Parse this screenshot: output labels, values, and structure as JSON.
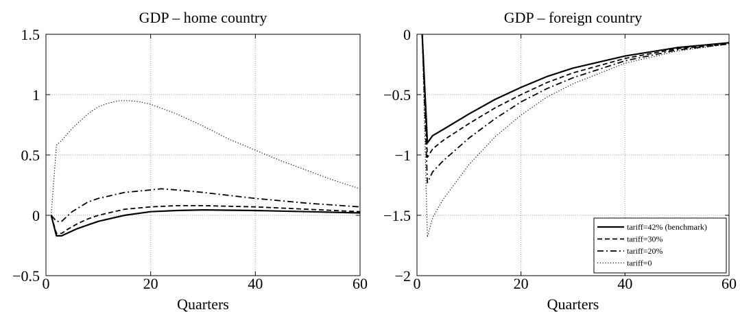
{
  "chart_data": [
    {
      "type": "line",
      "title": "GDP – home country",
      "xlabel": "Quarters",
      "ylabel": "",
      "xlim": [
        0,
        60
      ],
      "ylim": [
        -0.5,
        1.5
      ],
      "xticks": [
        "0",
        "20",
        "40",
        "60"
      ],
      "yticks": [
        "−0.5",
        "0",
        "0.5",
        "1",
        "1.5"
      ],
      "grid": true,
      "series": [
        {
          "name": "tariff=42% (benchmark)",
          "style": "solid",
          "x": [
            1,
            2,
            3,
            4,
            6,
            8,
            10,
            15,
            20,
            25,
            30,
            40,
            50,
            60
          ],
          "y": [
            0,
            -0.17,
            -0.17,
            -0.15,
            -0.11,
            -0.08,
            -0.05,
            0.0,
            0.03,
            0.04,
            0.045,
            0.04,
            0.03,
            0.02
          ]
        },
        {
          "name": "tariff=30%",
          "style": "dashed",
          "x": [
            1,
            2,
            3,
            4,
            6,
            8,
            10,
            15,
            20,
            25,
            30,
            40,
            50,
            60
          ],
          "y": [
            0,
            -0.15,
            -0.15,
            -0.12,
            -0.07,
            -0.03,
            0.0,
            0.05,
            0.07,
            0.08,
            0.08,
            0.07,
            0.05,
            0.03
          ]
        },
        {
          "name": "tariff=20%",
          "style": "dashdot",
          "x": [
            1,
            2,
            3,
            5,
            8,
            10,
            15,
            20,
            22,
            25,
            30,
            40,
            50,
            60
          ],
          "y": [
            0,
            -0.05,
            -0.05,
            0.03,
            0.11,
            0.14,
            0.19,
            0.21,
            0.22,
            0.21,
            0.19,
            0.14,
            0.1,
            0.07
          ]
        },
        {
          "name": "tariff=0",
          "style": "dotted",
          "x": [
            1,
            2,
            3,
            5,
            8,
            10,
            12,
            14,
            16,
            18,
            20,
            25,
            30,
            35,
            40,
            45,
            50,
            55,
            60
          ],
          "y": [
            0,
            0.58,
            0.62,
            0.72,
            0.84,
            0.9,
            0.93,
            0.95,
            0.95,
            0.94,
            0.92,
            0.84,
            0.74,
            0.63,
            0.54,
            0.45,
            0.37,
            0.29,
            0.22
          ]
        }
      ]
    },
    {
      "type": "line",
      "title": "GDP – foreign country",
      "xlabel": "Quarters",
      "ylabel": "",
      "xlim": [
        0,
        60
      ],
      "ylim": [
        -2,
        0
      ],
      "xticks": [
        "0",
        "20",
        "40",
        "60"
      ],
      "yticks": [
        "−2",
        "−1.5",
        "−1",
        "−0.5",
        "0"
      ],
      "grid": true,
      "legend": "bottom-right",
      "series": [
        {
          "name": "tariff=42% (benchmark)",
          "style": "solid",
          "x": [
            1,
            2,
            3,
            5,
            10,
            15,
            20,
            25,
            30,
            40,
            50,
            60
          ],
          "y": [
            0,
            -0.9,
            -0.84,
            -0.79,
            -0.66,
            -0.54,
            -0.44,
            -0.35,
            -0.28,
            -0.18,
            -0.11,
            -0.07
          ]
        },
        {
          "name": "tariff=30%",
          "style": "dashed",
          "x": [
            1,
            2,
            3,
            5,
            10,
            15,
            20,
            25,
            30,
            40,
            50,
            60
          ],
          "y": [
            0,
            -1.02,
            -0.95,
            -0.88,
            -0.74,
            -0.61,
            -0.5,
            -0.4,
            -0.32,
            -0.2,
            -0.12,
            -0.08
          ]
        },
        {
          "name": "tariff=20%",
          "style": "dashdot",
          "x": [
            1,
            2,
            3,
            5,
            10,
            15,
            20,
            25,
            30,
            40,
            50,
            60
          ],
          "y": [
            0,
            -1.23,
            -1.14,
            -1.05,
            -0.86,
            -0.7,
            -0.56,
            -0.45,
            -0.36,
            -0.22,
            -0.13,
            -0.08
          ]
        },
        {
          "name": "tariff=0",
          "style": "dotted",
          "x": [
            1,
            2,
            3,
            5,
            10,
            15,
            20,
            25,
            30,
            40,
            50,
            60
          ],
          "y": [
            0,
            -1.68,
            -1.52,
            -1.37,
            -1.08,
            -0.85,
            -0.67,
            -0.52,
            -0.41,
            -0.24,
            -0.14,
            -0.08
          ]
        }
      ]
    }
  ]
}
